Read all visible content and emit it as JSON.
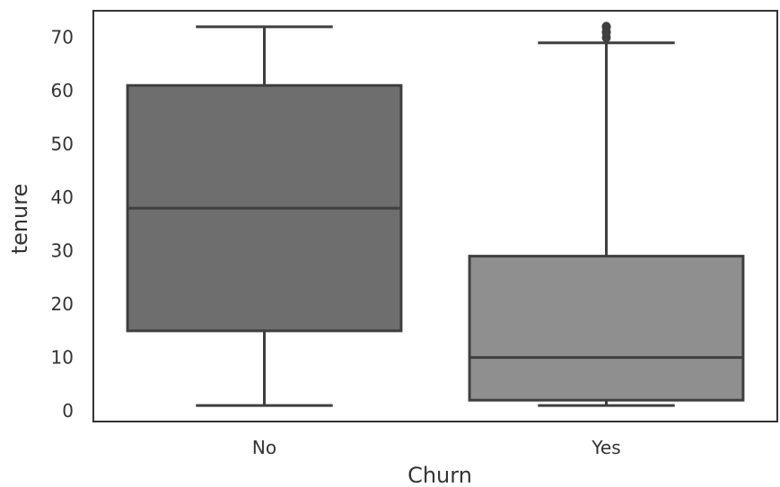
{
  "chart_data": {
    "type": "box",
    "xlabel": "Churn",
    "ylabel": "tenure",
    "ylim": [
      -2,
      75
    ],
    "yticks": [
      0,
      10,
      20,
      30,
      40,
      50,
      60,
      70
    ],
    "categories": [
      "No",
      "Yes"
    ],
    "grid": false,
    "boxes": [
      {
        "category": "No",
        "whisker_low": 1,
        "q1": 15,
        "median": 38,
        "q3": 61,
        "whisker_high": 72,
        "fliers": [],
        "color": "#6e6e6e"
      },
      {
        "category": "Yes",
        "whisker_low": 1,
        "q1": 2,
        "median": 10,
        "q3": 29,
        "whisker_high": 69,
        "fliers": [
          70,
          71,
          71,
          72,
          72
        ],
        "color": "#8f8f8f"
      }
    ],
    "colors": {
      "line": "#3f3f3f",
      "frame": "#333333"
    }
  }
}
